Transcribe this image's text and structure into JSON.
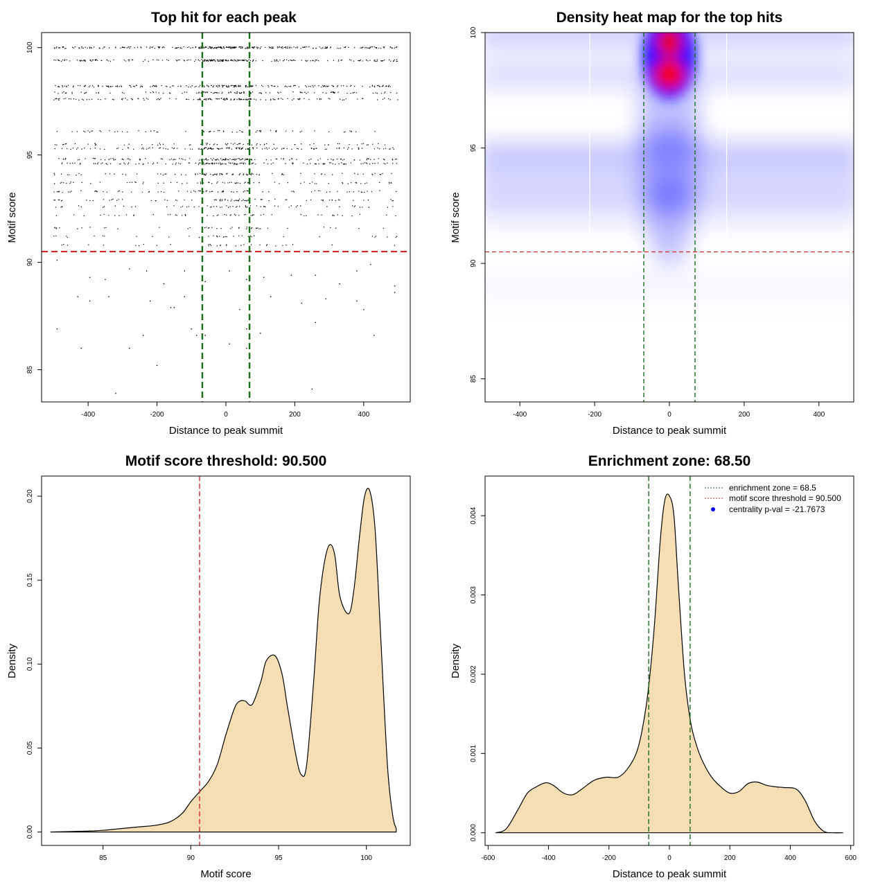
{
  "figure_colors": {
    "threshold_line": "#d62728",
    "zone_line": "#1a6b1a",
    "density_fill": "#f5deb3",
    "heat_low": "#ffffff",
    "heat_mid": "#0000ff",
    "heat_high": "#ff0000",
    "legend_point": "#0000ff"
  },
  "chart_data": [
    {
      "type": "scatter",
      "title": "Top hit for each peak",
      "xlabel": "Distance to peak summit",
      "ylabel": "Motif score",
      "xlim": [
        -535,
        535
      ],
      "ylim": [
        83.5,
        100.7
      ],
      "xticks": [
        -400,
        -200,
        0,
        200,
        400
      ],
      "yticks": [
        85,
        90,
        95,
        100
      ],
      "grid": false,
      "score_bands": [
        100,
        99.4,
        98.2,
        97.9,
        97.6,
        96.1,
        95.5,
        95.3,
        94.8,
        94.6,
        94.1,
        93.7,
        93.3,
        92.9,
        92.6,
        92.2,
        91.6,
        91.2,
        90.8
      ],
      "band_density": [
        1.0,
        0.7,
        0.65,
        0.45,
        0.5,
        0.25,
        0.3,
        0.5,
        0.5,
        0.45,
        0.35,
        0.3,
        0.3,
        0.3,
        0.25,
        0.2,
        0.15,
        0.15,
        0.12
      ],
      "sparse_points": [
        [
          -490,
          90.1
        ],
        [
          -395,
          89.3
        ],
        [
          -350,
          89.2
        ],
        [
          -280,
          89.7
        ],
        [
          -230,
          89.6
        ],
        [
          -180,
          89.0
        ],
        [
          -120,
          89.6
        ],
        [
          -60,
          89.1
        ],
        [
          10,
          89.6
        ],
        [
          60,
          89.2
        ],
        [
          110,
          89.3
        ],
        [
          190,
          89.4
        ],
        [
          260,
          89.4
        ],
        [
          330,
          89.0
        ],
        [
          380,
          89.6
        ],
        [
          420,
          89.9
        ],
        [
          490,
          88.9
        ],
        [
          -430,
          88.4
        ],
        [
          -395,
          88.2
        ],
        [
          -340,
          88.4
        ],
        [
          -220,
          88.2
        ],
        [
          -160,
          87.9
        ],
        [
          -150,
          87.9
        ],
        [
          -120,
          88.4
        ],
        [
          -70,
          88.4
        ],
        [
          40,
          87.8
        ],
        [
          130,
          88.4
        ],
        [
          220,
          88.1
        ],
        [
          290,
          88.3
        ],
        [
          380,
          88.2
        ],
        [
          400,
          87.8
        ],
        [
          490,
          88.6
        ],
        [
          -490,
          86.9
        ],
        [
          -240,
          86.6
        ],
        [
          -100,
          86.9
        ],
        [
          -85,
          86.6
        ],
        [
          -60,
          86.6
        ],
        [
          60,
          86.9
        ],
        [
          100,
          86.7
        ],
        [
          260,
          87.2
        ],
        [
          430,
          86.6
        ],
        [
          -420,
          86.0
        ],
        [
          -280,
          86.0
        ],
        [
          10,
          86.2
        ],
        [
          60,
          86.0
        ],
        [
          -200,
          85.2
        ],
        [
          -320,
          83.9
        ],
        [
          250,
          84.1
        ]
      ],
      "hlines": [
        90.5
      ],
      "vlines": [
        -68.5,
        68.5
      ]
    },
    {
      "type": "heatmap",
      "title": "Density heat map for the top hits",
      "xlabel": "Distance to peak summit",
      "ylabel": "Motif score",
      "xlim": [
        -493,
        493
      ],
      "ylim": [
        84.0,
        100.0
      ],
      "xticks": [
        -400,
        -200,
        0,
        200,
        400
      ],
      "yticks": [
        85,
        90,
        95,
        100
      ],
      "color_scale": [
        "#ffffff",
        "#0000ff",
        "#ff0000"
      ],
      "hotspots": [
        {
          "x": 0,
          "y": 100,
          "level": "high"
        },
        {
          "x": 0,
          "y": 98.2,
          "level": "high"
        },
        {
          "x": 0,
          "y": 95,
          "level": "medium"
        },
        {
          "x": 0,
          "y": 93,
          "level": "medium"
        }
      ],
      "hlines": [
        90.5
      ],
      "vlines": [
        -68.5,
        68.5
      ]
    },
    {
      "type": "area",
      "title": "Motif score threshold: 90.500",
      "xlabel": "Motif score",
      "ylabel": "Density",
      "xlim": [
        81.5,
        102.5
      ],
      "ylim": [
        -0.008,
        0.212
      ],
      "xticks": [
        85,
        90,
        95,
        100
      ],
      "yticks": [
        0.0,
        0.05,
        0.1,
        0.15,
        0.2
      ],
      "ytick_labels": [
        "0.00",
        "0.05",
        "0.10",
        "0.15",
        "0.20"
      ],
      "x": [
        82,
        84,
        85,
        86,
        87,
        88,
        88.8,
        89.5,
        90,
        90.5,
        91,
        91.5,
        92,
        92.5,
        92.8,
        93.1,
        93.5,
        94,
        94.3,
        94.8,
        95.2,
        95.5,
        96,
        96.3,
        96.6,
        97,
        97.3,
        97.6,
        97.9,
        98.2,
        98.5,
        99,
        99.3,
        99.6,
        99.9,
        100.2,
        100.5,
        100.8,
        101.2,
        101.5,
        101.7
      ],
      "y": [
        0.0,
        0.0005,
        0.001,
        0.002,
        0.003,
        0.004,
        0.006,
        0.011,
        0.018,
        0.024,
        0.03,
        0.04,
        0.058,
        0.074,
        0.078,
        0.078,
        0.076,
        0.09,
        0.102,
        0.105,
        0.094,
        0.075,
        0.045,
        0.034,
        0.04,
        0.09,
        0.135,
        0.16,
        0.171,
        0.165,
        0.14,
        0.13,
        0.145,
        0.175,
        0.2,
        0.203,
        0.18,
        0.12,
        0.04,
        0.01,
        0.002
      ],
      "vlines": [
        90.5
      ]
    },
    {
      "type": "area",
      "title": "Enrichment zone: 68.50",
      "xlabel": "Distance to peak summit",
      "ylabel": "Density",
      "xlim": [
        -610,
        610
      ],
      "ylim": [
        -0.00016,
        0.0045
      ],
      "xticks": [
        -600,
        -400,
        -200,
        0,
        200,
        400,
        600
      ],
      "yticks": [
        0.0,
        0.001,
        0.002,
        0.003,
        0.004
      ],
      "ytick_labels": [
        "0.000",
        "0.001",
        "0.002",
        "0.003",
        "0.004"
      ],
      "x": [
        -575,
        -540,
        -500,
        -470,
        -440,
        -410,
        -385,
        -350,
        -320,
        -290,
        -250,
        -210,
        -170,
        -140,
        -110,
        -90,
        -70,
        -50,
        -30,
        -15,
        0,
        15,
        30,
        50,
        70,
        90,
        110,
        140,
        170,
        200,
        230,
        260,
        290,
        320,
        350,
        380,
        420,
        450,
        480,
        510,
        540,
        575
      ],
      "y": [
        0.0,
        5e-05,
        0.0003,
        0.0005,
        0.00058,
        0.00063,
        0.0006,
        0.0005,
        0.00048,
        0.00055,
        0.00066,
        0.0007,
        0.0007,
        0.0008,
        0.001,
        0.0013,
        0.0018,
        0.0026,
        0.0037,
        0.0042,
        0.00425,
        0.004,
        0.0031,
        0.002,
        0.0014,
        0.0011,
        0.0009,
        0.0007,
        0.00058,
        0.0005,
        0.00052,
        0.00062,
        0.00064,
        0.0006,
        0.00058,
        0.00057,
        0.00055,
        0.0004,
        0.00015,
        2e-05,
        0.0,
        0.0
      ],
      "vlines": [
        -68.5,
        68.5
      ],
      "legend": [
        {
          "label": "enrichment zone = 68.5",
          "style": "dotted",
          "color": "#1a6b1a"
        },
        {
          "label": "motif score threshold = 90.500",
          "style": "dotted",
          "color": "#d62728"
        },
        {
          "label": "centrality p-val = -21.7673",
          "style": "point",
          "color": "#0000ff"
        }
      ],
      "legend_position": "top-right"
    }
  ]
}
